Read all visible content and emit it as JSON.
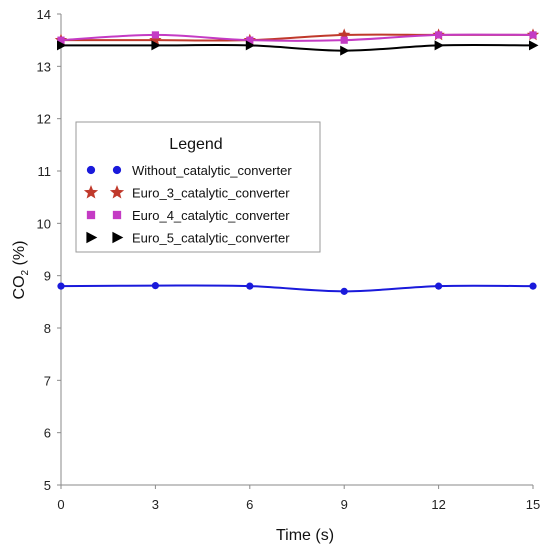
{
  "chart_data": {
    "type": "line",
    "title": "",
    "xlabel": "Time (s)",
    "ylabel_main": "CO",
    "ylabel_sub": "2",
    "ylabel_unit": " (%)",
    "xlim": [
      0,
      15
    ],
    "ylim": [
      5,
      14
    ],
    "x_ticks": [
      0,
      3,
      6,
      9,
      12,
      15
    ],
    "y_ticks": [
      5,
      6,
      7,
      8,
      9,
      10,
      11,
      12,
      13,
      14
    ],
    "x": [
      0,
      3,
      6,
      9,
      12,
      15
    ],
    "grid": false,
    "legend": {
      "title": "Legend",
      "placement": "upper-left"
    },
    "series": [
      {
        "name": "Without_catalytic_converter",
        "values": [
          8.8,
          8.81,
          8.8,
          8.7,
          8.8,
          8.8
        ],
        "color": "#1a1adb",
        "marker": "circle"
      },
      {
        "name": "Euro_3_catalytic_converter",
        "values": [
          13.5,
          13.5,
          13.5,
          13.6,
          13.6,
          13.6
        ],
        "color": "#c0392b",
        "marker": "star"
      },
      {
        "name": "Euro_4_catalytic_converter",
        "values": [
          13.5,
          13.6,
          13.5,
          13.5,
          13.6,
          13.6
        ],
        "color": "#c43bc4",
        "marker": "square"
      },
      {
        "name": "Euro_5_catalytic_converter",
        "values": [
          13.4,
          13.4,
          13.4,
          13.3,
          13.4,
          13.4
        ],
        "color": "#000000",
        "marker": "triangle"
      }
    ]
  }
}
